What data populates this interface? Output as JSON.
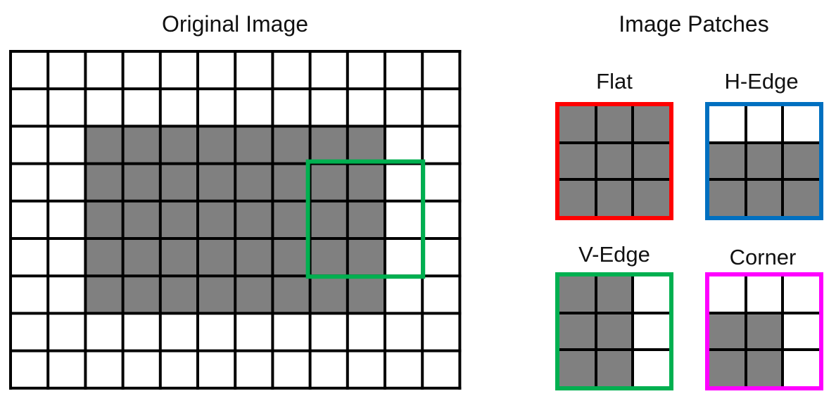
{
  "titles": {
    "original": "Original Image",
    "patches": "Image Patches"
  },
  "original_image": {
    "rows": 9,
    "cols": 12,
    "fill_color": "#808080",
    "empty_color": "#ffffff",
    "line_color": "#000000",
    "filled_rows": [
      2,
      6
    ],
    "filled_cols": [
      2,
      9
    ],
    "highlight": {
      "row_start": 3,
      "col_start": 8,
      "size": 3,
      "color": "#00b050"
    }
  },
  "patches": [
    {
      "name": "flat",
      "label": "Flat",
      "color": "#ff0000",
      "cells": [
        [
          1,
          1,
          1
        ],
        [
          1,
          1,
          1
        ],
        [
          1,
          1,
          1
        ]
      ]
    },
    {
      "name": "h-edge",
      "label": "H-Edge",
      "color": "#0070c0",
      "cells": [
        [
          0,
          0,
          0
        ],
        [
          1,
          1,
          1
        ],
        [
          1,
          1,
          1
        ]
      ]
    },
    {
      "name": "v-edge",
      "label": "V-Edge",
      "color": "#00b050",
      "cells": [
        [
          1,
          1,
          0
        ],
        [
          1,
          1,
          0
        ],
        [
          1,
          1,
          0
        ]
      ]
    },
    {
      "name": "corner",
      "label": "Corner",
      "color": "#ff00ff",
      "cells": [
        [
          0,
          0,
          0
        ],
        [
          1,
          1,
          0
        ],
        [
          1,
          1,
          0
        ]
      ]
    }
  ]
}
